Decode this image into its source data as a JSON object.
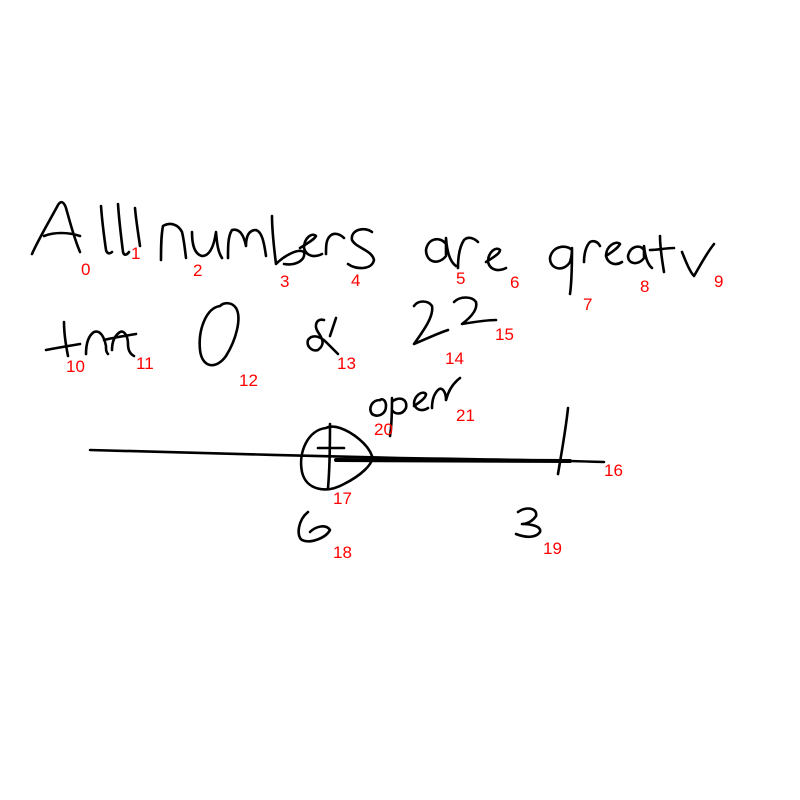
{
  "canvas": {
    "background_color": "#ffffff",
    "ink_color": "#000000",
    "label_color": "#ff0000"
  },
  "strokes": [
    {
      "index": "0",
      "depicts": "A"
    },
    {
      "index": "1",
      "depicts": "l"
    },
    {
      "index": "2",
      "depicts": "n"
    },
    {
      "index": "3",
      "depicts": "b"
    },
    {
      "index": "4",
      "depicts": "s"
    },
    {
      "index": "5",
      "depicts": "r"
    },
    {
      "index": "6",
      "depicts": "e"
    },
    {
      "index": "7",
      "depicts": "g"
    },
    {
      "index": "8",
      "depicts": "eat"
    },
    {
      "index": "9",
      "depicts": "r"
    },
    {
      "index": "10",
      "depicts": "t"
    },
    {
      "index": "11",
      "depicts": "n"
    },
    {
      "index": "12",
      "depicts": "0"
    },
    {
      "index": "13",
      "depicts": "&"
    },
    {
      "index": "14",
      "depicts": "2"
    },
    {
      "index": "15",
      "depicts": "2"
    },
    {
      "index": "16",
      "depicts": "number-line"
    },
    {
      "index": "17",
      "depicts": "open-circle"
    },
    {
      "index": "18",
      "depicts": "0"
    },
    {
      "index": "19",
      "depicts": "3"
    },
    {
      "index": "20",
      "depicts": "o"
    },
    {
      "index": "21",
      "depicts": "pen"
    }
  ]
}
